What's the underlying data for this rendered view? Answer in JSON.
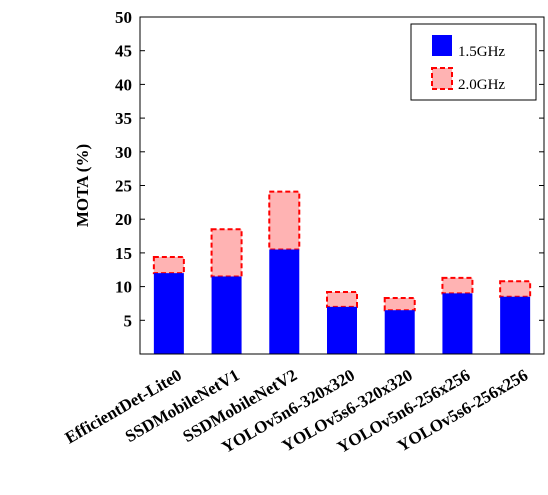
{
  "chart_data": {
    "type": "bar",
    "stacked": true,
    "categories": [
      "EfficientDet-Lite0",
      "SSDMobileNetV1",
      "SSDMobileNetV2",
      "YOLOv5n6-320x320",
      "YOLOv5s6-320x320",
      "YOLOv5n6-256x256",
      "YOLOv5s6-256x256"
    ],
    "series": [
      {
        "name": "1.5GHz",
        "values": [
          12.0,
          11.5,
          15.5,
          7.0,
          6.5,
          9.0,
          8.5
        ],
        "color": "#0000ff",
        "style": "solid"
      },
      {
        "name": "2.0GHz",
        "values": [
          14.4,
          18.5,
          24.1,
          9.2,
          8.3,
          11.3,
          10.8
        ],
        "color": "#ffb3b3",
        "edge_color": "#ff0000",
        "style": "dashed"
      }
    ],
    "title": "",
    "xlabel": "",
    "ylabel": "MOTA (%)",
    "ylim": [
      0,
      50
    ],
    "yticks": [
      5,
      10,
      15,
      20,
      25,
      30,
      35,
      40,
      45,
      50
    ],
    "legend": "top-right",
    "grid": false
  }
}
